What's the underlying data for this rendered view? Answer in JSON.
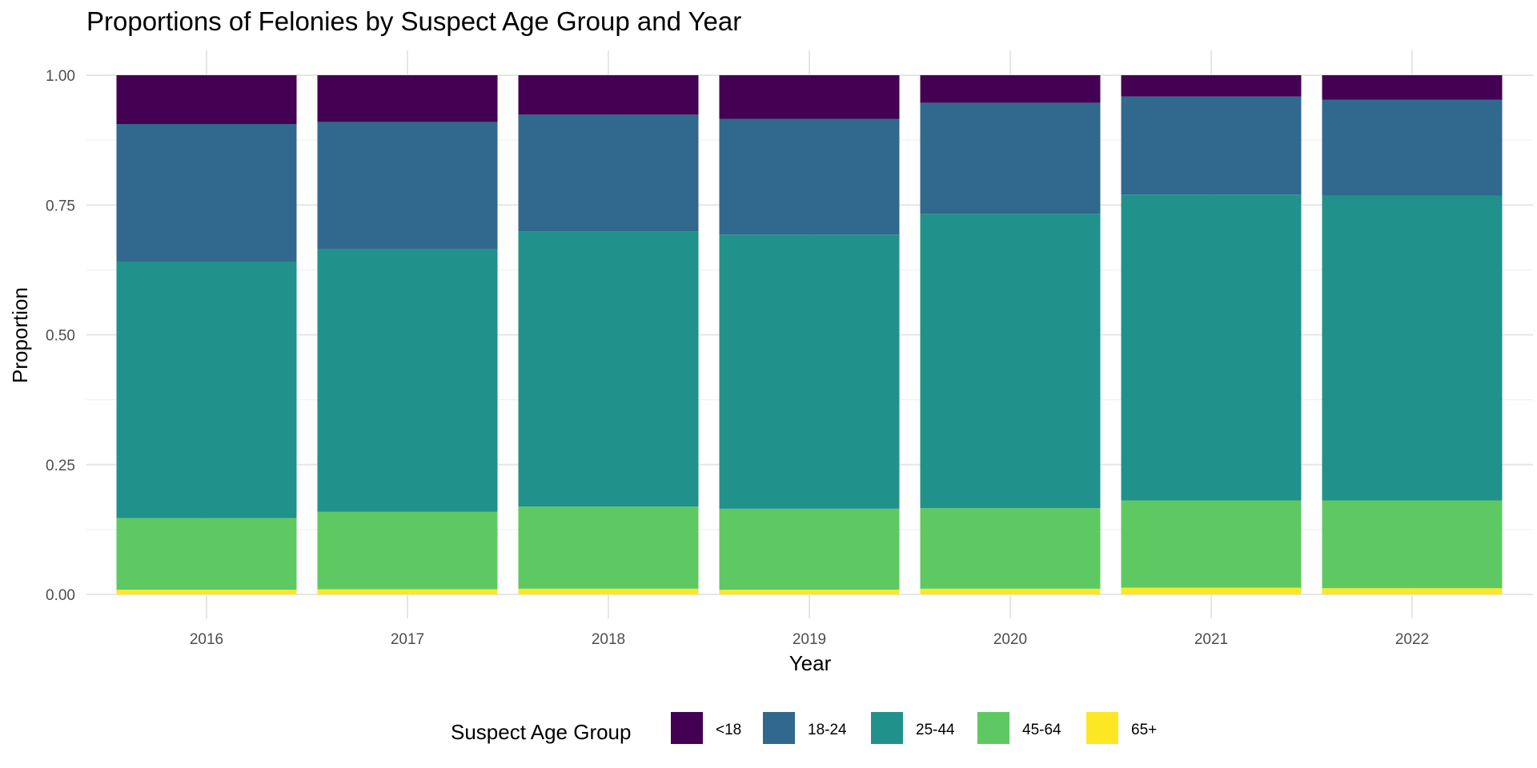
{
  "chart_data": {
    "type": "bar",
    "stacked": true,
    "title": "Proportions of Felonies by Suspect Age Group and Year",
    "xlabel": "Year",
    "ylabel": "Proportion",
    "ylim": [
      0,
      1
    ],
    "yticks": [
      "0.00",
      "0.25",
      "0.50",
      "0.75",
      "1.00"
    ],
    "grid": true,
    "legend_position": "bottom",
    "legend_title": "Suspect Age Group",
    "categories": [
      "2016",
      "2017",
      "2018",
      "2019",
      "2020",
      "2021",
      "2022"
    ],
    "series": [
      {
        "name": "<18",
        "color": "#440154",
        "values": [
          0.094,
          0.09,
          0.076,
          0.084,
          0.053,
          0.041,
          0.047
        ]
      },
      {
        "name": "18-24",
        "color": "#31688e",
        "values": [
          0.265,
          0.245,
          0.225,
          0.223,
          0.214,
          0.189,
          0.185
        ]
      },
      {
        "name": "25-44",
        "color": "#21918c",
        "values": [
          0.494,
          0.506,
          0.53,
          0.528,
          0.567,
          0.589,
          0.587
        ]
      },
      {
        "name": "45-64",
        "color": "#5ec962",
        "values": [
          0.138,
          0.149,
          0.158,
          0.156,
          0.155,
          0.168,
          0.169
        ]
      },
      {
        "name": "65+",
        "color": "#fde725",
        "values": [
          0.009,
          0.01,
          0.011,
          0.009,
          0.011,
          0.013,
          0.012
        ]
      }
    ]
  }
}
